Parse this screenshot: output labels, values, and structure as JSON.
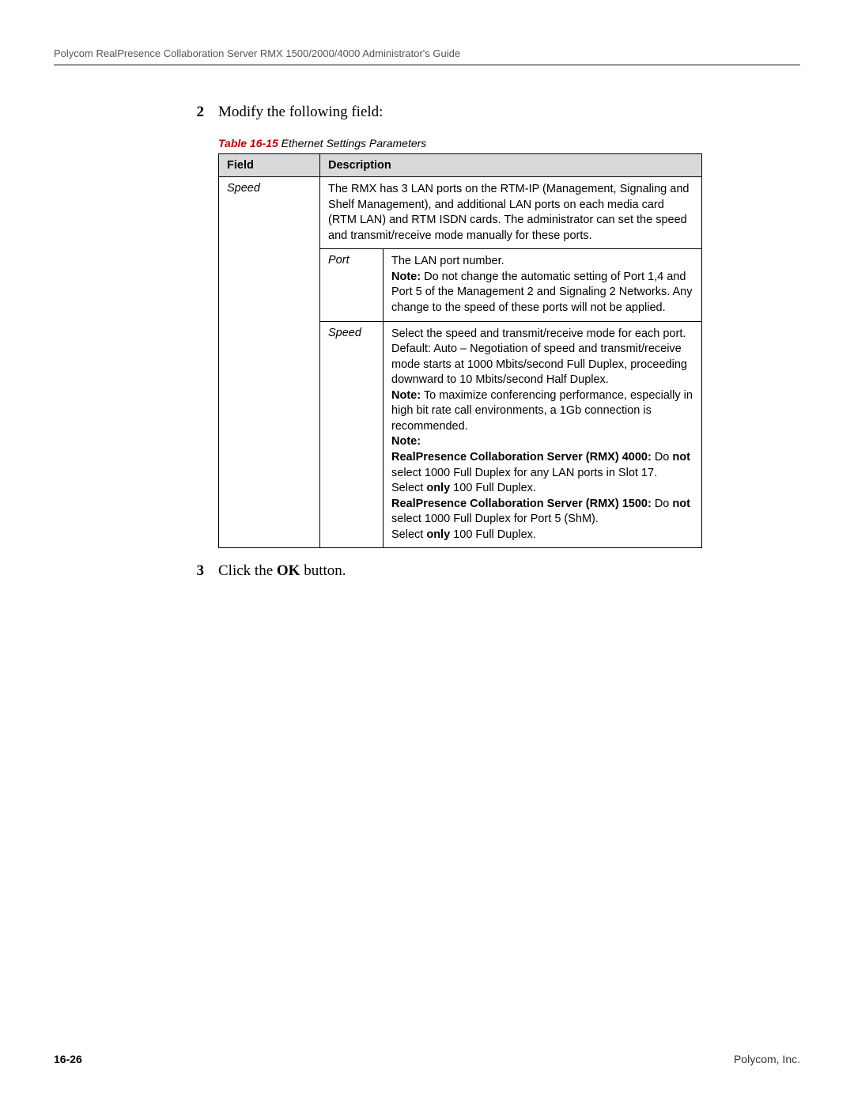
{
  "header": {
    "running_head": "Polycom RealPresence Collaboration Server RMX 1500/2000/4000 Administrator's Guide"
  },
  "steps": {
    "s2": {
      "num": "2",
      "text": "Modify the following field:"
    },
    "s3": {
      "num": "3",
      "text_prefix": "Click the ",
      "text_bold": "OK",
      "text_suffix": " button."
    }
  },
  "table": {
    "caption_label": "Table 16-15",
    "caption_title": " Ethernet Settings Parameters",
    "head_field": "Field",
    "head_desc": "Description",
    "row_field": "Speed",
    "row_desc_main": "The RMX has 3 LAN ports on the RTM-IP (Management, Signaling and Shelf Management), and additional LAN ports on each media card (RTM LAN) and RTM ISDN cards. The administrator can set the speed and transmit/receive mode manually for these ports.",
    "port": {
      "label": "Port",
      "line1": "The LAN port number.",
      "note_label": "Note:",
      "note_text": " Do not change the automatic setting of Port 1,4 and Port 5 of the Management 2 and Signaling 2 Networks. Any change to the speed of these ports will not be applied."
    },
    "speed": {
      "label": "Speed",
      "para1": "Select the speed and transmit/receive mode for each port. Default: Auto – Negotiation of speed and transmit/receive mode starts at 1000 Mbits/second Full Duplex, proceeding downward to 10 Mbits/second Half Duplex.",
      "note1_label": "Note:",
      "note1_text": " To maximize conferencing performance, especially in high bit rate call environments, a 1Gb connection is recommended.",
      "note2_label": "Note:",
      "rmx4000_label": "RealPresence Collaboration Server (RMX) 4000:",
      "rmx4000_do": " Do ",
      "rmx4000_not": "not",
      "rmx4000_rest": " select 1000 Full Duplex for any LAN ports in Slot 17.",
      "rmx4000_select_pre": "Select ",
      "rmx4000_only": "only",
      "rmx4000_select_post": " 100 Full Duplex.",
      "rmx1500_label": "RealPresence Collaboration Server (RMX) 1500:",
      "rmx1500_do": " Do ",
      "rmx1500_not": "not",
      "rmx1500_rest": " select 1000 Full Duplex for Port 5 (ShM).",
      "rmx1500_select_pre": "Select ",
      "rmx1500_only": "only",
      "rmx1500_select_post": " 100 Full Duplex."
    }
  },
  "footer": {
    "page_num": "16-26",
    "company": "Polycom, Inc."
  },
  "colors": {
    "rule": "#999999",
    "header_bg": "#d9d9d9",
    "caption_red": "#c00000"
  }
}
